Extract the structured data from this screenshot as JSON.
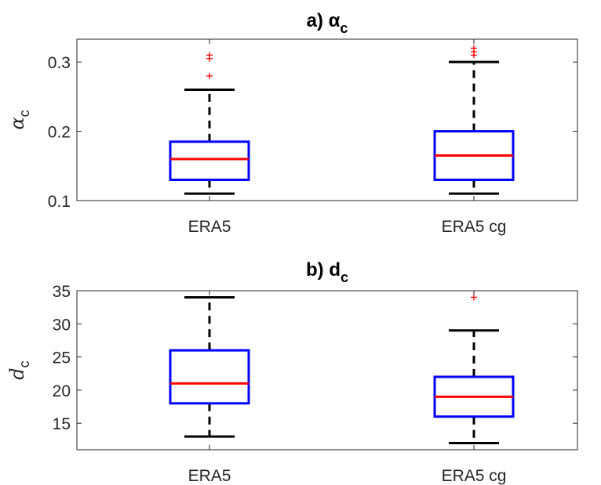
{
  "chart_data": [
    {
      "type": "box",
      "title": "a) α",
      "title_sub": "c",
      "ylabel": "α",
      "ylabel_sub": "c",
      "categories": [
        "ERA5",
        "ERA5 cg"
      ],
      "ylim": [
        0.1,
        0.333
      ],
      "yticks": [
        0.1,
        0.2,
        0.3
      ],
      "ytick_labels": [
        "0.1",
        "0.2",
        "0.3"
      ],
      "boxes": [
        {
          "q1": 0.13,
          "median": 0.16,
          "q3": 0.185,
          "whisker_low": 0.11,
          "whisker_high": 0.26,
          "outliers": [
            0.28,
            0.305,
            0.31
          ]
        },
        {
          "q1": 0.13,
          "median": 0.165,
          "q3": 0.2,
          "whisker_low": 0.11,
          "whisker_high": 0.3,
          "outliers": [
            0.31,
            0.315,
            0.32
          ]
        }
      ]
    },
    {
      "type": "box",
      "title": "b) d",
      "title_sub": "c",
      "ylabel": "d",
      "ylabel_sub": "c",
      "categories": [
        "ERA5",
        "ERA5 cg"
      ],
      "ylim": [
        11,
        35
      ],
      "yticks": [
        15,
        20,
        25,
        30,
        35
      ],
      "ytick_labels": [
        "15",
        "20",
        "25",
        "30",
        "35"
      ],
      "boxes": [
        {
          "q1": 18,
          "median": 21,
          "q3": 26,
          "whisker_low": 13,
          "whisker_high": 34,
          "outliers": []
        },
        {
          "q1": 16,
          "median": 19,
          "q3": 22,
          "whisker_low": 12,
          "whisker_high": 29,
          "outliers": [
            34
          ]
        }
      ]
    }
  ],
  "colors": {
    "box": "#0000ff",
    "median": "#ff0000",
    "whisker": "#000000",
    "outlier": "#ff0000",
    "axis": "#262626"
  }
}
